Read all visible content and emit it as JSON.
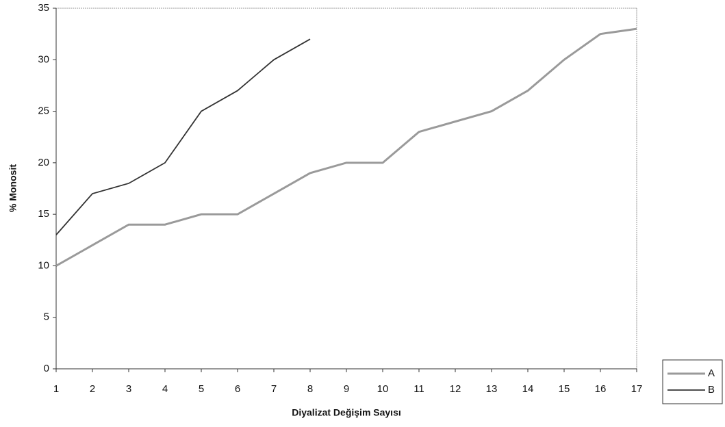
{
  "chart_data": {
    "type": "line",
    "x_label": "Diyalizat Değişim Sayısı",
    "y_label": "% Monosit",
    "x": [
      1,
      2,
      3,
      4,
      5,
      6,
      7,
      8,
      9,
      10,
      11,
      12,
      13,
      14,
      15,
      16,
      17
    ],
    "xlim": [
      1,
      17
    ],
    "xticks": [
      1,
      2,
      3,
      4,
      5,
      6,
      7,
      8,
      9,
      10,
      11,
      12,
      13,
      14,
      15,
      16,
      17
    ],
    "ylim": [
      0,
      35
    ],
    "yticks": [
      0,
      5,
      10,
      15,
      20,
      25,
      30,
      35
    ],
    "legend": "right",
    "series": [
      {
        "name": "A",
        "color": "#9a9a9a",
        "values": [
          10,
          12,
          14,
          14,
          15,
          15,
          17,
          19,
          20,
          20,
          23,
          24,
          25,
          27,
          30,
          32.5,
          33
        ]
      },
      {
        "name": "B",
        "color": "#333333",
        "values": [
          13,
          17,
          18,
          20,
          25,
          27,
          30,
          32,
          null,
          null,
          null,
          null,
          null,
          null,
          null,
          null,
          null
        ]
      }
    ]
  }
}
